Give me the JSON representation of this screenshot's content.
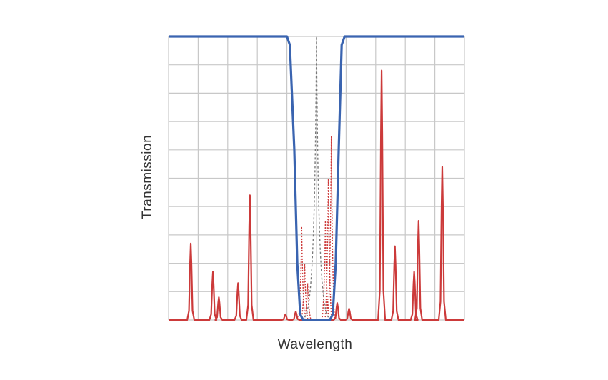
{
  "chart_data": {
    "type": "line",
    "title": "",
    "xlabel": "Wavelength",
    "ylabel": "Transmission",
    "xlim": [
      0,
      100
    ],
    "ylim": [
      0,
      100
    ],
    "grid": true,
    "x_ticks": 10,
    "y_ticks": 10,
    "colors": {
      "passband": "#3a64b0",
      "filtered_peaks": "#cc3a3a",
      "dashed_peak": "#7a7a7a",
      "grid": "#c8c8c8"
    },
    "series": [
      {
        "style": "solid-blue",
        "points": [
          [
            0,
            100
          ],
          [
            40,
            100
          ],
          [
            41,
            97
          ],
          [
            42.5,
            60
          ],
          [
            43.5,
            20
          ],
          [
            44.5,
            2
          ],
          [
            45.5,
            0
          ],
          [
            54.5,
            0
          ],
          [
            55.5,
            2
          ],
          [
            56.5,
            20
          ],
          [
            57.5,
            60
          ],
          [
            58.5,
            97
          ],
          [
            59.5,
            100
          ],
          [
            100,
            100
          ]
        ]
      },
      {
        "style": "solid-red-peaks",
        "peaks": [
          {
            "x": 7.5,
            "y": 27
          },
          {
            "x": 15,
            "y": 17
          },
          {
            "x": 17,
            "y": 8
          },
          {
            "x": 23.5,
            "y": 13
          },
          {
            "x": 27.5,
            "y": 44
          },
          {
            "x": 39.5,
            "y": 2
          },
          {
            "x": 43,
            "y": 3
          },
          {
            "x": 57,
            "y": 6
          },
          {
            "x": 61,
            "y": 4
          },
          {
            "x": 72,
            "y": 88
          },
          {
            "x": 76.5,
            "y": 26
          },
          {
            "x": 83,
            "y": 17
          },
          {
            "x": 84.5,
            "y": 35
          },
          {
            "x": 92.5,
            "y": 54
          }
        ]
      },
      {
        "style": "dotted-red-peaks",
        "peaks": [
          {
            "x": 45,
            "y": 33
          },
          {
            "x": 46,
            "y": 20
          },
          {
            "x": 47,
            "y": 13
          },
          {
            "x": 53,
            "y": 35
          },
          {
            "x": 54,
            "y": 50
          },
          {
            "x": 55,
            "y": 65
          }
        ]
      },
      {
        "style": "dashed-gray-peak",
        "peaks": [
          {
            "x": 50,
            "y": 100
          }
        ]
      }
    ]
  }
}
